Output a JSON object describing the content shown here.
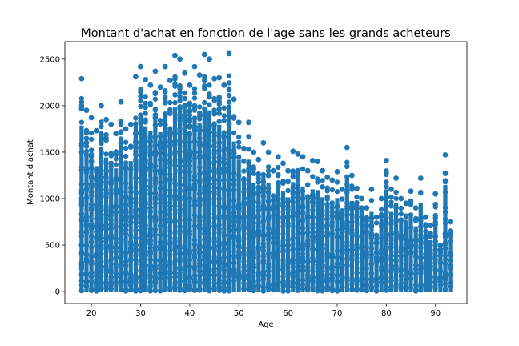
{
  "chart_data": {
    "type": "scatter",
    "title": "Montant d'achat en fonction de l'age sans les grands acheteurs",
    "xlabel": "Age",
    "ylabel": "Montant d'achat",
    "xlim": [
      14.6,
      96.4
    ],
    "ylim": [
      -128,
      2688
    ],
    "x_ticks": [
      20,
      30,
      40,
      50,
      60,
      70,
      80,
      90
    ],
    "y_ticks": [
      0,
      500,
      1000,
      1500,
      2000,
      2500
    ],
    "grid": false,
    "legend": "none",
    "point_color": "#1f77b4",
    "series": [
      {
        "x": [
          18,
          18,
          18,
          18,
          18,
          18,
          19,
          19,
          19,
          19,
          20,
          20,
          20,
          20,
          21,
          21,
          21,
          22,
          22,
          22,
          23,
          23,
          23,
          24,
          24,
          25,
          25,
          26,
          26,
          27,
          27,
          28,
          28,
          29,
          29,
          29,
          30,
          30,
          30,
          31,
          31,
          32,
          32,
          32,
          33,
          33,
          33,
          34,
          34,
          35,
          35,
          35,
          36,
          36,
          37,
          37,
          38,
          38,
          38,
          39,
          39,
          40,
          40,
          41,
          41,
          42,
          42,
          43,
          43,
          44,
          44,
          45,
          45,
          46,
          46,
          47,
          47,
          48,
          48,
          48,
          49,
          49,
          50,
          50,
          51,
          51,
          52,
          52,
          53,
          53,
          54,
          55,
          55,
          56,
          56,
          57,
          58,
          58,
          59,
          59,
          60,
          60,
          61,
          62,
          62,
          63,
          63,
          64,
          65,
          65,
          66,
          66,
          67,
          68,
          68,
          69,
          70,
          70,
          71,
          72,
          72,
          73,
          74,
          74,
          75,
          76,
          77,
          78,
          79,
          80,
          80,
          81,
          82,
          83,
          84,
          85,
          86,
          87,
          88,
          89,
          90,
          91,
          92,
          92,
          93,
          93
        ],
        "y": [
          2290,
          1980,
          1500,
          1000,
          500,
          10,
          1950,
          1600,
          800,
          200,
          1870,
          1400,
          900,
          300,
          1730,
          1200,
          400,
          2000,
          1500,
          700,
          1850,
          1300,
          500,
          1800,
          900,
          1700,
          1200,
          2040,
          1600,
          1750,
          800,
          1800,
          1000,
          2310,
          1700,
          500,
          2420,
          1600,
          700,
          2280,
          1300,
          2220,
          1500,
          600,
          2370,
          1900,
          800,
          2200,
          1300,
          2420,
          1800,
          600,
          2270,
          1200,
          2540,
          1700,
          2500,
          1900,
          700,
          2350,
          1400,
          2220,
          1000,
          2420,
          1500,
          2330,
          800,
          2550,
          1900,
          2500,
          1300,
          2290,
          700,
          2300,
          1600,
          2220,
          900,
          2560,
          1800,
          600,
          2070,
          1200,
          1820,
          900,
          1540,
          1200,
          1820,
          1000,
          1500,
          800,
          1420,
          1600,
          600,
          1500,
          900,
          1300,
          1450,
          700,
          1380,
          800,
          1300,
          500,
          1510,
          1480,
          700,
          1450,
          1000,
          1300,
          1410,
          800,
          1400,
          1000,
          1300,
          1230,
          600,
          1200,
          1290,
          800,
          1100,
          1550,
          700,
          1250,
          1110,
          600,
          1000,
          900,
          1100,
          800,
          1000,
          1410,
          600,
          1100,
          1220,
          1000,
          950,
          1080,
          900,
          1220,
          800,
          710,
          1050,
          500,
          1470,
          620,
          750,
          280
        ]
      }
    ]
  }
}
